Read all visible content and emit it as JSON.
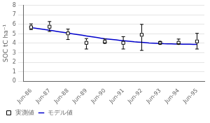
{
  "chart_data": {
    "type": "line",
    "ylabel": "SOC tC ha⁻¹",
    "xlim": [
      -0.4,
      9.4
    ],
    "xticks": [
      {
        "value": 0,
        "label": "Jun-86"
      },
      {
        "value": 1,
        "label": "Jun-87"
      },
      {
        "value": 2,
        "label": "Jun-88"
      },
      {
        "value": 3,
        "label": "Jun-89"
      },
      {
        "value": 4,
        "label": "Jun-90"
      },
      {
        "value": 5,
        "label": "Jun-91"
      },
      {
        "value": 6,
        "label": "Jun-92"
      },
      {
        "value": 7,
        "label": "Jun-93"
      },
      {
        "value": 8,
        "label": "Jun-94"
      },
      {
        "value": 9,
        "label": "Jun-95"
      }
    ],
    "ylim": [
      0,
      8
    ],
    "yticks": [
      0,
      1,
      2,
      3,
      4,
      5,
      6,
      7,
      8
    ],
    "grid": "y",
    "legend": "lower left",
    "series": [
      {
        "name": "モデル値",
        "type": "line",
        "color": "#0000cc",
        "x": [
          0,
          0.2,
          0.4,
          0.6,
          0.8,
          1.0,
          1.2,
          1.4,
          1.6,
          1.8,
          2.0,
          2.2,
          2.4,
          2.6,
          2.8,
          3.0,
          3.2,
          3.4,
          3.6,
          3.8,
          4.0,
          4.2,
          4.4,
          4.6,
          4.8,
          5.0,
          5.2,
          5.4,
          5.6,
          5.8,
          6.0,
          6.2,
          6.4,
          6.6,
          6.8,
          7.0,
          7.2,
          7.4,
          7.6,
          7.8,
          8.0,
          8.2,
          8.4,
          8.6,
          8.8,
          9.0
        ],
        "values": [
          5.65,
          5.6,
          5.55,
          5.5,
          5.44,
          5.38,
          5.32,
          5.26,
          5.2,
          5.14,
          5.08,
          5.02,
          4.96,
          4.9,
          4.84,
          4.78,
          4.72,
          4.66,
          4.6,
          4.54,
          4.48,
          4.44,
          4.4,
          4.36,
          4.32,
          4.28,
          4.24,
          4.2,
          4.16,
          4.13,
          4.1,
          4.07,
          4.04,
          4.02,
          4.0,
          3.98,
          3.96,
          3.95,
          3.94,
          3.93,
          3.92,
          3.91,
          3.9,
          3.9,
          3.89,
          3.88
        ]
      },
      {
        "name": "実測値",
        "type": "scatter",
        "color": "black",
        "marker": "square",
        "x": [
          0,
          1,
          2,
          3,
          4,
          5,
          6,
          7,
          8,
          9
        ],
        "values": [
          5.7,
          5.75,
          5.05,
          4.05,
          4.15,
          4.05,
          4.9,
          4.05,
          4.05,
          4.2
        ],
        "yerr_low": [
          0.25,
          0.5,
          0.65,
          0.65,
          0.1,
          0.65,
          1.65,
          0.1,
          0.1,
          0.8
        ],
        "yerr_high": [
          0.35,
          0.55,
          0.45,
          0.45,
          0.3,
          0.65,
          1.1,
          0.1,
          0.4,
          0.85
        ]
      }
    ]
  }
}
